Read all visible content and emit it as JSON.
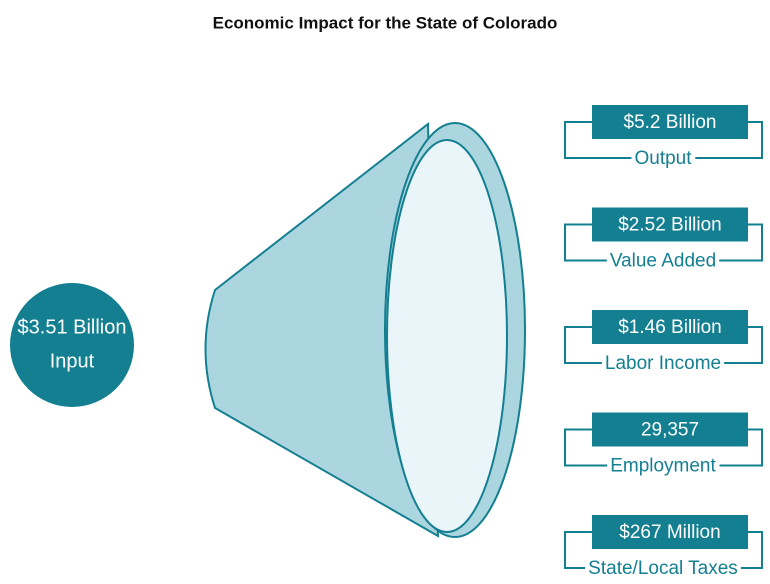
{
  "title": "Economic Impact for the State of Colorado",
  "input": {
    "value": "$3.51 Billion",
    "label": "Input"
  },
  "outputs": [
    {
      "value": "$5.2 Billion",
      "label": "Output"
    },
    {
      "value": "$2.52 Billion",
      "label": "Value Added"
    },
    {
      "value": "$1.46 Billion",
      "label": "Labor Income"
    },
    {
      "value": "29,357",
      "label": "Employment"
    },
    {
      "value": "$267 Million",
      "label": "State/Local Taxes"
    }
  ]
}
